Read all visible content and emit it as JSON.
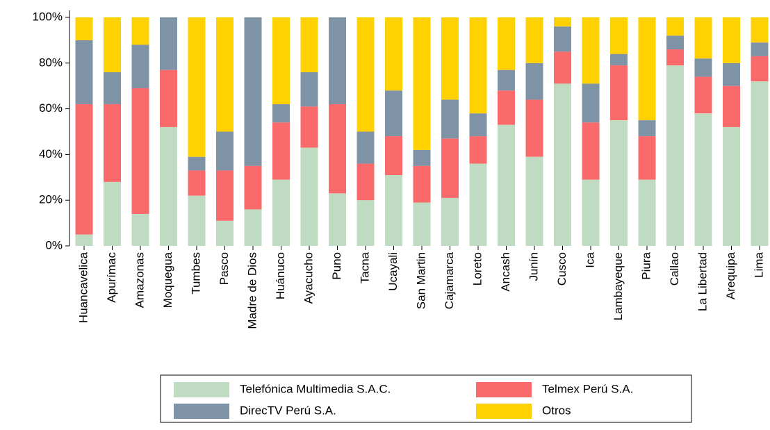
{
  "chart_data": {
    "type": "stacked_bar",
    "categories": [
      "Huancavelica",
      "Apurímac",
      "Amazonas",
      "Moquegua",
      "Tumbes",
      "Pasco",
      "Madre de Dios",
      "Huánuco",
      "Ayacucho",
      "Puno",
      "Tacna",
      "Ucayali",
      "San Martin",
      "Cajamarca",
      "Loreto",
      "Ancash",
      "Junín",
      "Cusco",
      "Ica",
      "Lambayeque",
      "Piura",
      "Callao",
      "La Libertad",
      "Arequipa",
      "Lima"
    ],
    "series": [
      {
        "name": "Telefónica Multimedia S.A.C.",
        "color": "#bfdcc2",
        "values": [
          5,
          28,
          14,
          52,
          22,
          11,
          16,
          29,
          43,
          23,
          20,
          31,
          19,
          21,
          36,
          53,
          39,
          71,
          29,
          55,
          29,
          79,
          58,
          52,
          72
        ]
      },
      {
        "name": "Telmex Perú S.A.",
        "color": "#fb6a6a",
        "values": [
          57,
          34,
          55,
          25,
          11,
          22,
          19,
          25,
          18,
          39,
          16,
          17,
          16,
          26,
          12,
          15,
          25,
          14,
          25,
          24,
          19,
          7,
          16,
          18,
          11
        ]
      },
      {
        "name": "DirecTV Perú S.A.",
        "color": "#7f93a7",
        "values": [
          28,
          14,
          19,
          23,
          6,
          17,
          65,
          8,
          15,
          38,
          14,
          20,
          7,
          17,
          10,
          9,
          16,
          11,
          17,
          5,
          7,
          6,
          8,
          10,
          6
        ]
      },
      {
        "name": "Otros",
        "color": "#ffd100",
        "values": [
          10,
          24,
          12,
          0,
          61,
          50,
          0,
          38,
          24,
          0,
          50,
          32,
          58,
          36,
          42,
          23,
          20,
          4,
          29,
          16,
          45,
          8,
          18,
          20,
          11
        ]
      }
    ],
    "ylim": [
      0,
      100
    ],
    "yticks": [
      {
        "value": 0,
        "label": "0%"
      },
      {
        "value": 20,
        "label": "20%"
      },
      {
        "value": 40,
        "label": "40%"
      },
      {
        "value": 60,
        "label": "60%"
      },
      {
        "value": 80,
        "label": "80%"
      },
      {
        "value": 100,
        "label": "100%"
      }
    ],
    "legend": "bottom"
  }
}
